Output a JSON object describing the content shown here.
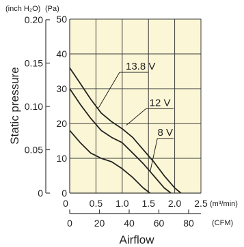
{
  "colors": {
    "plot_bg": "#fbf7d6",
    "grid": "#3a3a3a",
    "curve": "#222222",
    "text": "#222222"
  },
  "units": {
    "inch_h2o": "(inch H₂O)",
    "pa": "(Pa)",
    "m3min": "(m³/min)",
    "cfm": "(CFM)"
  },
  "chart_data": {
    "type": "line",
    "title": "",
    "xlabel": "Airflow",
    "ylabel": "Static pressure",
    "xlim": [
      0,
      2.5
    ],
    "ylim": [
      0,
      50
    ],
    "grid": true,
    "x_ticks_m3min": [
      "0",
      "0.5",
      "1.0",
      "1.5",
      "2.0",
      "2.5"
    ],
    "x_ticks_cfm": [
      "0",
      "20",
      "40",
      "60",
      "80"
    ],
    "x_ticks_cfm_values": [
      0,
      20,
      40,
      60,
      80
    ],
    "y_ticks_pa": [
      "0",
      "10",
      "20",
      "30",
      "40",
      "50"
    ],
    "y_ticks_inch": [
      "0",
      "0.05",
      "0.10",
      "0.15",
      "0.20"
    ],
    "y_ticks_inch_values": [
      0,
      0.05,
      0.1,
      0.15,
      0.2
    ],
    "series": [
      {
        "name": "13.8 V",
        "x": [
          0,
          0.2,
          0.4,
          0.6,
          0.8,
          1.0,
          1.2,
          1.4,
          1.6,
          1.8,
          2.0,
          2.12
        ],
        "y": [
          36,
          31.5,
          27,
          23,
          20.5,
          18.5,
          16,
          12.5,
          9,
          5,
          1.5,
          0
        ]
      },
      {
        "name": "12 V",
        "x": [
          0,
          0.2,
          0.4,
          0.6,
          0.8,
          1.0,
          1.2,
          1.4,
          1.6,
          1.8,
          1.93
        ],
        "y": [
          30,
          25.5,
          21.5,
          18,
          16,
          14.5,
          11.5,
          8.5,
          5,
          1.5,
          0
        ]
      },
      {
        "name": "8 V",
        "x": [
          0,
          0.2,
          0.4,
          0.6,
          0.8,
          1.0,
          1.2,
          1.4,
          1.53
        ],
        "y": [
          18,
          14.5,
          11.5,
          10,
          9,
          7,
          4.5,
          1.5,
          0
        ]
      }
    ]
  }
}
